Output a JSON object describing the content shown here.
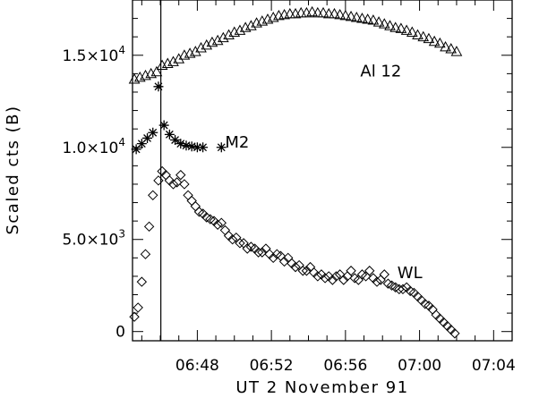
{
  "chart_data": {
    "type": "scatter",
    "title": "",
    "xlabel": "UT 2 November 91",
    "ylabel": "Scaled cts (B)",
    "xlim": [
      44.5,
      65.0
    ],
    "ylim": [
      -500,
      18000
    ],
    "x_units": "minutes after 06:00 UT",
    "x_ticks": [
      {
        "value": 48,
        "label": "06:48"
      },
      {
        "value": 52,
        "label": "06:52"
      },
      {
        "value": 56,
        "label": "06:56"
      },
      {
        "value": 60,
        "label": "07:00"
      },
      {
        "value": 64,
        "label": "07:04"
      }
    ],
    "x_minor_step": 1,
    "y_ticks": [
      {
        "value": 0,
        "mant": "0",
        "exp": ""
      },
      {
        "value": 5000,
        "mant": "5.0×10",
        "exp": "3"
      },
      {
        "value": 10000,
        "mant": "1.0×10",
        "exp": "4"
      },
      {
        "value": 15000,
        "mant": "1.5×10",
        "exp": "4"
      }
    ],
    "y_minor_step": 1000,
    "vertical_line_x": 46.03,
    "series": [
      {
        "name": "Al 12",
        "marker": "triangle",
        "label_at": [
          56.8,
          13850
        ],
        "x": [
          44.6,
          44.9,
          45.2,
          45.5,
          45.8,
          46.1,
          46.4,
          46.7,
          47.0,
          47.3,
          47.6,
          47.9,
          48.2,
          48.5,
          48.8,
          49.1,
          49.4,
          49.7,
          50.0,
          50.3,
          50.6,
          50.9,
          51.2,
          51.5,
          51.8,
          52.1,
          52.4,
          52.7,
          53.0,
          53.3,
          53.6,
          53.9,
          54.2,
          54.5,
          54.8,
          55.1,
          55.4,
          55.7,
          56.0,
          56.3,
          56.6,
          56.9,
          57.2,
          57.5,
          57.8,
          58.1,
          58.4,
          58.7,
          59.0,
          59.3,
          59.6,
          59.9,
          60.2,
          60.5,
          60.8,
          61.1,
          61.4,
          61.7,
          62.0
        ],
        "y": [
          13700,
          13800,
          13900,
          14000,
          14100,
          14450,
          14550,
          14650,
          14800,
          15000,
          15100,
          15200,
          15400,
          15550,
          15700,
          15800,
          15950,
          16100,
          16250,
          16350,
          16500,
          16600,
          16750,
          16850,
          16950,
          17050,
          17150,
          17200,
          17250,
          17250,
          17300,
          17300,
          17350,
          17300,
          17300,
          17250,
          17250,
          17200,
          17150,
          17100,
          17050,
          17000,
          16950,
          16900,
          16800,
          16700,
          16600,
          16500,
          16450,
          16350,
          16250,
          16100,
          16000,
          15900,
          15750,
          15650,
          15450,
          15350,
          15200
        ]
      },
      {
        "name": "M2",
        "marker": "asterisk",
        "label_at": [
          49.5,
          10000
        ],
        "x": [
          44.7,
          45.0,
          45.3,
          45.6,
          45.9,
          46.2,
          46.5,
          46.8,
          47.1,
          47.4,
          47.7,
          48.0,
          48.3,
          49.3
        ],
        "y": [
          9900,
          10200,
          10500,
          10800,
          13300,
          11200,
          10700,
          10400,
          10200,
          10100,
          10050,
          10000,
          10000,
          10000
        ]
      },
      {
        "name": "WL",
        "marker": "diamond",
        "label_at": [
          58.8,
          2900
        ],
        "x": [
          44.6,
          44.8,
          45.0,
          45.2,
          45.4,
          45.6,
          45.9,
          46.1,
          46.3,
          46.5,
          46.7,
          46.9,
          47.1,
          47.3,
          47.5,
          47.7,
          47.9,
          48.1,
          48.3,
          48.5,
          48.7,
          48.9,
          49.1,
          49.3,
          49.5,
          49.7,
          49.9,
          50.1,
          50.3,
          50.5,
          50.7,
          50.9,
          51.1,
          51.3,
          51.5,
          51.7,
          51.9,
          52.1,
          52.3,
          52.5,
          52.7,
          52.9,
          53.1,
          53.3,
          53.5,
          53.7,
          53.9,
          54.1,
          54.3,
          54.5,
          54.7,
          54.9,
          55.1,
          55.3,
          55.5,
          55.7,
          55.9,
          56.1,
          56.3,
          56.5,
          56.7,
          56.9,
          57.1,
          57.3,
          57.5,
          57.7,
          57.9,
          58.1,
          58.3,
          58.5,
          58.7,
          58.9,
          59.1,
          59.3,
          59.5,
          59.7,
          59.9,
          60.1,
          60.3,
          60.5,
          60.7,
          60.9,
          61.1,
          61.3,
          61.5,
          61.7,
          61.9
        ],
        "y": [
          800,
          1300,
          2700,
          4200,
          5700,
          7400,
          8200,
          8700,
          8500,
          8200,
          8000,
          8100,
          8500,
          8000,
          7400,
          7100,
          6800,
          6500,
          6400,
          6200,
          6100,
          6000,
          5800,
          5900,
          5500,
          5200,
          5000,
          5100,
          4800,
          4800,
          4500,
          4600,
          4500,
          4300,
          4300,
          4500,
          4200,
          4000,
          4200,
          4100,
          3800,
          4000,
          3700,
          3500,
          3600,
          3300,
          3300,
          3500,
          3200,
          3000,
          3100,
          2900,
          3000,
          2800,
          3000,
          3100,
          2800,
          3000,
          3300,
          2900,
          2800,
          3100,
          3000,
          3300,
          2900,
          2700,
          2800,
          3100,
          2600,
          2500,
          2400,
          2300,
          2300,
          2400,
          2200,
          2100,
          1900,
          1700,
          1500,
          1400,
          1200,
          900,
          700,
          500,
          300,
          100,
          -100
        ]
      }
    ]
  }
}
